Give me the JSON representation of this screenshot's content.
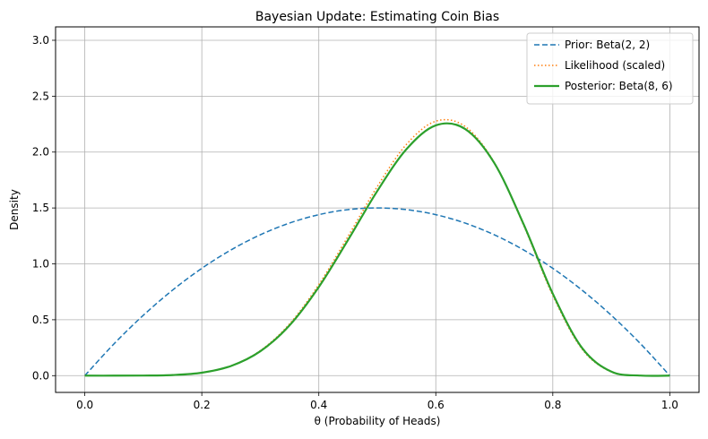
{
  "chart_data": {
    "type": "line",
    "title": "Bayesian Update: Estimating Coin Bias",
    "xlabel": "θ (Probability of Heads)",
    "ylabel": "Density",
    "xlim": [
      -0.05,
      1.05
    ],
    "ylim": [
      -0.15,
      3.12
    ],
    "xticks": [
      0.0,
      0.2,
      0.4,
      0.6,
      0.8,
      1.0
    ],
    "xtick_labels": [
      "0.0",
      "0.2",
      "0.4",
      "0.6",
      "0.8",
      "1.0"
    ],
    "yticks": [
      0.0,
      0.5,
      1.0,
      1.5,
      2.0,
      2.5,
      3.0
    ],
    "ytick_labels": [
      "0.0",
      "0.5",
      "1.0",
      "1.5",
      "2.0",
      "2.5",
      "3.0"
    ],
    "grid": true,
    "legend_position": "top-right",
    "series": [
      {
        "name": "Prior: Beta(2, 2)",
        "color": "#1f77b4",
        "dash": "dashed",
        "width": 1.5,
        "x": [
          0,
          0.05,
          0.1,
          0.15,
          0.2,
          0.25,
          0.3,
          0.35,
          0.4,
          0.45,
          0.5,
          0.55,
          0.6,
          0.65,
          0.7,
          0.75,
          0.8,
          0.85,
          0.9,
          0.95,
          1.0
        ],
        "values": [
          0,
          0.285,
          0.54,
          0.765,
          0.96,
          1.125,
          1.26,
          1.365,
          1.44,
          1.485,
          1.5,
          1.485,
          1.44,
          1.365,
          1.26,
          1.125,
          0.96,
          0.765,
          0.54,
          0.285,
          0
        ]
      },
      {
        "name": "Likelihood (scaled)",
        "color": "#ff7f0e",
        "dash": "dotted",
        "width": 1.5,
        "x": [
          0,
          0.05,
          0.1,
          0.15,
          0.2,
          0.25,
          0.3,
          0.35,
          0.4,
          0.45,
          0.5,
          0.55,
          0.6,
          0.65,
          0.7,
          0.75,
          0.8,
          0.85,
          0.9,
          0.95,
          1.0
        ],
        "values": [
          0,
          0.0,
          0.0006,
          0.0052,
          0.0261,
          0.0881,
          0.224,
          0.463,
          0.815,
          1.246,
          1.692,
          2.07,
          2.276,
          2.23,
          1.906,
          1.346,
          0.717,
          0.238,
          0.0337,
          0.0005,
          0
        ]
      },
      {
        "name": "Posterior: Beta(8, 6)",
        "color": "#2ca02c",
        "dash": "solid",
        "width": 2.2,
        "x": [
          0,
          0.05,
          0.1,
          0.15,
          0.2,
          0.25,
          0.3,
          0.35,
          0.4,
          0.45,
          0.5,
          0.55,
          0.6,
          0.65,
          0.7,
          0.75,
          0.8,
          0.85,
          0.9,
          0.95,
          1.0
        ],
        "values": [
          0,
          0.0,
          0.0007,
          0.0054,
          0.0262,
          0.0866,
          0.218,
          0.45,
          0.793,
          1.214,
          1.652,
          2.027,
          2.239,
          2.207,
          1.902,
          1.356,
          0.733,
          0.248,
          0.0361,
          0.0006,
          0
        ]
      }
    ]
  }
}
